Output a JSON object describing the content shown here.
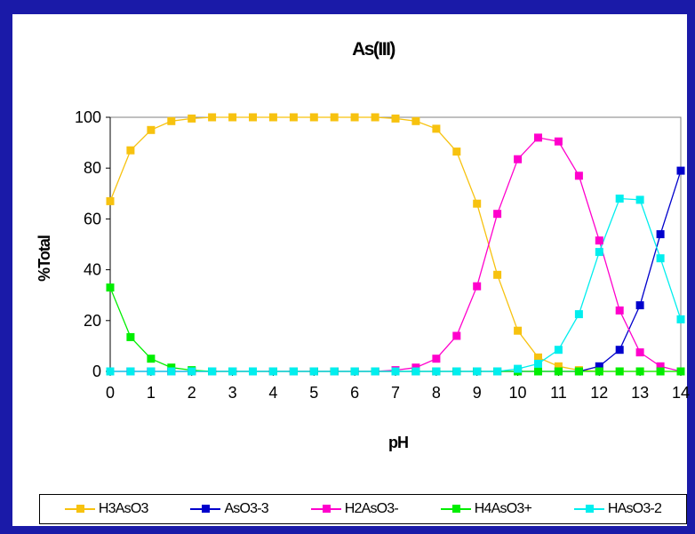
{
  "chart_data": {
    "type": "line",
    "title": "As(III)",
    "xlabel": "pH",
    "ylabel": "%Total",
    "xlim": [
      0,
      14
    ],
    "ylim": [
      0,
      100
    ],
    "xticks": [
      "0",
      "1",
      "2",
      "3",
      "4",
      "5",
      "6",
      "7",
      "8",
      "9",
      "10",
      "11",
      "12",
      "13",
      "14"
    ],
    "yticks": [
      "0",
      "20",
      "40",
      "60",
      "80",
      "100"
    ],
    "grid": false,
    "legend_position": "bottom",
    "x": [
      0,
      0.5,
      1,
      1.5,
      2,
      2.5,
      3,
      3.5,
      4,
      4.5,
      5,
      5.5,
      6,
      6.5,
      7,
      7.5,
      8,
      8.5,
      9,
      9.5,
      10,
      10.5,
      11,
      11.5,
      12,
      12.5,
      13,
      13.5,
      14
    ],
    "series": [
      {
        "name": "H3AsO3",
        "color": "#f7c20f",
        "values": [
          67,
          87,
          95,
          98.5,
          99.5,
          100,
          100,
          100,
          100,
          100,
          100,
          100,
          100,
          100,
          99.5,
          98.5,
          95.5,
          86.5,
          66,
          38,
          16,
          5.5,
          2,
          0.5,
          0,
          0,
          0,
          0,
          0
        ]
      },
      {
        "name": "AsO3-3",
        "color": "#0000cc",
        "values": [
          0,
          0,
          0,
          0,
          0,
          0,
          0,
          0,
          0,
          0,
          0,
          0,
          0,
          0,
          0,
          0,
          0,
          0,
          0,
          0,
          0,
          0,
          0,
          0,
          2,
          8.5,
          26,
          54,
          79
        ]
      },
      {
        "name": "H2AsO3-",
        "color": "#ff00cc",
        "values": [
          0,
          0,
          0,
          0,
          0,
          0,
          0,
          0,
          0,
          0,
          0,
          0,
          0,
          0,
          0.5,
          1.5,
          5,
          14,
          33.5,
          62,
          83.5,
          92,
          90.5,
          77,
          51.5,
          24,
          7.5,
          2,
          0
        ]
      },
      {
        "name": "H4AsO3+",
        "color": "#00ee00",
        "values": [
          33,
          13.5,
          5,
          1.5,
          0.5,
          0,
          0,
          0,
          0,
          0,
          0,
          0,
          0,
          0,
          0,
          0,
          0,
          0,
          0,
          0,
          0,
          0,
          0,
          0,
          0,
          0,
          0,
          0,
          0
        ]
      },
      {
        "name": "HAsO3-2",
        "color": "#00eeee",
        "values": [
          0,
          0,
          0,
          0,
          0,
          0,
          0,
          0,
          0,
          0,
          0,
          0,
          0,
          0,
          0,
          0,
          0,
          0,
          0,
          0,
          1,
          3,
          8.5,
          22.5,
          47,
          68,
          67.5,
          44.5,
          20.5
        ]
      }
    ]
  }
}
